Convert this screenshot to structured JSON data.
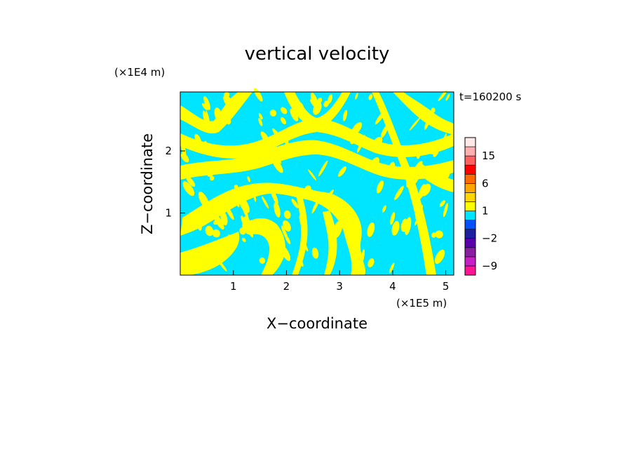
{
  "chart_data": {
    "type": "heatmap",
    "title": "vertical velocity",
    "xlabel": "X−coordinate",
    "ylabel": "Z−coordinate",
    "x_unit": "(×1E5 m)",
    "y_unit": "(×1E4 m)",
    "time_label": "t=160200 s",
    "xlim": [
      0,
      5.15
    ],
    "ylim": [
      0,
      2.95
    ],
    "x_ticks": [
      1,
      2,
      3,
      4,
      5
    ],
    "y_ticks": [
      1,
      2
    ],
    "x_tick_labels": [
      "1",
      "2",
      "3",
      "4",
      "5"
    ],
    "y_tick_labels": [
      "1",
      "2"
    ],
    "field_colors": {
      "positive": "#ffff00",
      "negative": "#00e5ff"
    },
    "colorbar": {
      "levels": [
        -12,
        -9,
        -6,
        -4,
        -2,
        -1,
        0,
        1,
        2,
        4,
        6,
        9,
        12,
        15,
        18,
        21
      ],
      "colors": [
        "#ff1493",
        "#c81ec8",
        "#8a1ea0",
        "#5a00aa",
        "#1e1ea0",
        "#0050ff",
        "#00e5ff",
        "#ffff00",
        "#ffd700",
        "#ffa500",
        "#ff6a00",
        "#ff0000",
        "#ff6060",
        "#ffb0b0",
        "#ffe8e8"
      ],
      "tick_values": [
        -9,
        -2,
        1,
        6,
        15
      ],
      "tick_labels": [
        "−9",
        "−2",
        "1",
        "6",
        "15"
      ]
    }
  }
}
